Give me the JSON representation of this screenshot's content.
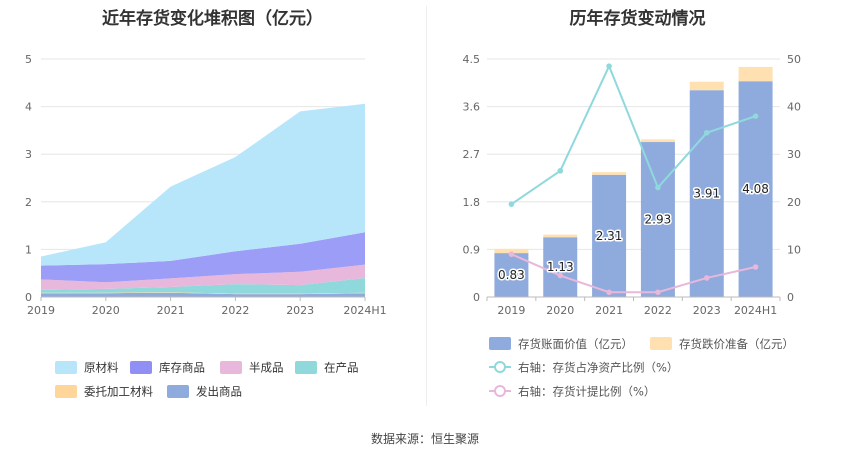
{
  "chart_data": [
    {
      "type": "area",
      "stacked": true,
      "title": "近年存货变化堆积图（亿元）",
      "categories": [
        "2019",
        "2020",
        "2021",
        "2022",
        "2023",
        "2024H1"
      ],
      "ylim": [
        0,
        5
      ],
      "yticks": [
        0,
        1,
        2,
        3,
        4,
        5
      ],
      "series": [
        {
          "name": "发出商品",
          "color": "#8faadc",
          "values": [
            0.08,
            0.08,
            0.09,
            0.06,
            0.06,
            0.08
          ]
        },
        {
          "name": "委托加工材料",
          "color": "#ffd699",
          "values": [
            0.01,
            0.01,
            0.01,
            0.01,
            0.01,
            0.01
          ]
        },
        {
          "name": "在产品",
          "color": "#8fd9dd",
          "values": [
            0.06,
            0.08,
            0.11,
            0.2,
            0.18,
            0.31
          ]
        },
        {
          "name": "半成品",
          "color": "#e8b7dc",
          "values": [
            0.22,
            0.14,
            0.18,
            0.21,
            0.28,
            0.28
          ]
        },
        {
          "name": "库存商品",
          "color": "#9c9df7",
          "values": [
            0.29,
            0.38,
            0.37,
            0.48,
            0.59,
            0.68
          ]
        },
        {
          "name": "原材料",
          "color": "#b7e6fb",
          "values": [
            0.19,
            0.46,
            1.56,
            1.98,
            2.78,
            2.7
          ]
        }
      ],
      "legend": [
        {
          "name": "原材料",
          "color": "#b7e6fb"
        },
        {
          "name": "库存商品",
          "color": "#8f8ff5"
        },
        {
          "name": "半成品",
          "color": "#e8b7dc"
        },
        {
          "name": "在产品",
          "color": "#8fd9dd"
        },
        {
          "name": "委托加工材料",
          "color": "#ffd699"
        },
        {
          "name": "发出商品",
          "color": "#8faadc"
        }
      ],
      "legend_position": "bottom"
    },
    {
      "type": "bar",
      "title": "历年存货变动情况",
      "categories": [
        "2019",
        "2020",
        "2021",
        "2022",
        "2023",
        "2024H1"
      ],
      "ylim_left": [
        0,
        4.5
      ],
      "yticks_left": [
        "0",
        "0.9",
        "1.8",
        "2.7",
        "3.6",
        "4.5"
      ],
      "ylim_right": [
        0,
        50
      ],
      "yticks_right": [
        "0",
        "10",
        "20",
        "30",
        "40",
        "50"
      ],
      "series": [
        {
          "name": "存货账面价值（亿元）",
          "type": "bar",
          "color": "#8faadc",
          "values": [
            0.83,
            1.13,
            2.31,
            2.93,
            3.91,
            4.08
          ],
          "labels": [
            "0.83",
            "1.13",
            "2.31",
            "2.93",
            "3.91",
            "4.08"
          ]
        },
        {
          "name": "存货跌价准备（亿元）",
          "type": "bar",
          "stacked": true,
          "color": "#ffe0b0",
          "values": [
            0.08,
            0.05,
            0.05,
            0.05,
            0.16,
            0.27
          ]
        },
        {
          "name": "右轴：存货占净资产比例（%）",
          "type": "line",
          "axis": "right",
          "color": "#8fd9dd",
          "values": [
            19.5,
            26.5,
            48.5,
            23.0,
            34.5,
            38.0
          ]
        },
        {
          "name": "右轴：存货计提比例（%）",
          "type": "line",
          "axis": "right",
          "color": "#e8b7dc",
          "values": [
            9.0,
            4.5,
            1.0,
            1.0,
            4.0,
            6.3
          ]
        }
      ],
      "legend_position": "bottom"
    }
  ],
  "source": "数据来源：恒生聚源"
}
